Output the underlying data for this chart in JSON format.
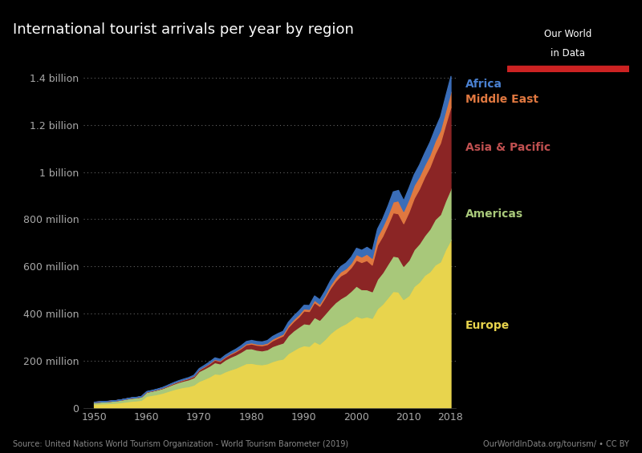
{
  "title": "International tourist arrivals per year by region",
  "background_color": "#000000",
  "text_color": "#ffffff",
  "source_text": "Source: United Nations World Tourism Organization - World Tourism Barometer (2019)",
  "owid_text": "OurWorldInData.org/tourism/ • CC BY",
  "years": [
    1950,
    1951,
    1952,
    1953,
    1954,
    1955,
    1956,
    1957,
    1958,
    1959,
    1960,
    1961,
    1962,
    1963,
    1964,
    1965,
    1966,
    1967,
    1968,
    1969,
    1970,
    1971,
    1972,
    1973,
    1974,
    1975,
    1976,
    1977,
    1978,
    1979,
    1980,
    1981,
    1982,
    1983,
    1984,
    1985,
    1986,
    1987,
    1988,
    1989,
    1990,
    1991,
    1992,
    1993,
    1994,
    1995,
    1996,
    1997,
    1998,
    1999,
    2000,
    2001,
    2002,
    2003,
    2004,
    2005,
    2006,
    2007,
    2008,
    2009,
    2010,
    2011,
    2012,
    2013,
    2014,
    2015,
    2016,
    2017,
    2018
  ],
  "europe": [
    16.8,
    17.5,
    18.5,
    19.5,
    21.0,
    23.0,
    26.0,
    29.0,
    30.5,
    33.0,
    50.4,
    54.0,
    58.0,
    63.0,
    70.0,
    77.0,
    83.0,
    88.0,
    91.0,
    97.5,
    113.0,
    122.0,
    132.0,
    145.0,
    143.0,
    153.9,
    162.0,
    169.0,
    179.0,
    189.0,
    190.0,
    186.0,
    184.0,
    188.0,
    197.0,
    204.0,
    208.0,
    231.0,
    244.0,
    257.0,
    265.0,
    262.0,
    282.0,
    271.0,
    291.0,
    315.0,
    333.0,
    347.0,
    358.0,
    374.0,
    390.0,
    382.0,
    387.0,
    381.0,
    421.0,
    441.0,
    468.0,
    495.0,
    493.0,
    461.0,
    477.0,
    516.0,
    534.0,
    563.0,
    578.0,
    607.0,
    620.0,
    672.0,
    713.0
  ],
  "americas": [
    7.5,
    8.0,
    8.5,
    9.0,
    9.5,
    10.5,
    11.5,
    12.5,
    13.0,
    14.0,
    16.7,
    17.5,
    18.5,
    19.5,
    21.0,
    23.0,
    25.0,
    26.5,
    29.0,
    31.5,
    42.0,
    44.0,
    46.0,
    48.0,
    45.0,
    50.0,
    53.5,
    56.0,
    58.0,
    62.0,
    62.0,
    60.0,
    59.0,
    59.5,
    64.0,
    65.0,
    68.0,
    76.0,
    83.0,
    86.0,
    93.0,
    93.0,
    103.0,
    102.0,
    107.0,
    109.0,
    114.0,
    117.0,
    119.0,
    122.0,
    128.0,
    121.0,
    115.5,
    113.0,
    125.0,
    133.0,
    142.0,
    150.0,
    148.0,
    141.0,
    150.0,
    156.0,
    163.0,
    168.0,
    181.0,
    193.0,
    201.0,
    207.0,
    217.0
  ],
  "asia_pacific": [
    0.2,
    0.25,
    0.3,
    0.35,
    0.4,
    0.5,
    0.6,
    0.7,
    0.8,
    0.9,
    1.1,
    1.3,
    1.6,
    2.0,
    2.5,
    3.0,
    3.5,
    4.0,
    4.8,
    5.5,
    6.0,
    8.0,
    9.5,
    11.0,
    10.0,
    11.0,
    12.0,
    13.5,
    15.0,
    17.5,
    20.0,
    21.0,
    21.5,
    22.0,
    24.5,
    27.0,
    30.0,
    35.0,
    39.0,
    43.0,
    54.0,
    55.0,
    63.0,
    59.0,
    69.0,
    82.0,
    90.0,
    97.0,
    96.0,
    100.0,
    110.0,
    115.0,
    124.0,
    113.0,
    145.0,
    155.0,
    167.0,
    184.0,
    184.0,
    181.0,
    204.0,
    218.0,
    233.0,
    249.0,
    263.0,
    279.0,
    303.0,
    323.0,
    347.0
  ],
  "middle_east": [
    0.0,
    0.0,
    0.0,
    0.0,
    0.0,
    0.0,
    0.1,
    0.1,
    0.2,
    0.2,
    0.5,
    0.6,
    0.7,
    0.8,
    1.0,
    1.2,
    1.3,
    1.4,
    1.5,
    1.6,
    1.8,
    2.0,
    2.3,
    2.7,
    2.8,
    3.0,
    3.4,
    3.8,
    4.2,
    4.6,
    5.0,
    5.0,
    5.5,
    6.0,
    7.0,
    7.5,
    7.5,
    8.5,
    9.0,
    9.5,
    9.5,
    9.0,
    10.0,
    9.5,
    11.0,
    13.5,
    15.0,
    17.0,
    18.0,
    18.5,
    24.0,
    23.5,
    27.0,
    29.0,
    36.0,
    40.0,
    41.0,
    46.0,
    55.0,
    52.0,
    54.0,
    55.0,
    52.0,
    50.0,
    51.0,
    53.0,
    54.0,
    58.0,
    64.0
  ],
  "africa": [
    0.5,
    0.5,
    0.6,
    0.6,
    0.7,
    0.8,
    0.9,
    1.0,
    1.1,
    1.2,
    1.5,
    1.6,
    1.8,
    2.0,
    2.3,
    2.6,
    2.8,
    3.0,
    3.2,
    3.5,
    4.8,
    5.5,
    6.2,
    6.6,
    6.6,
    7.0,
    7.5,
    8.0,
    8.8,
    9.5,
    10.4,
    10.8,
    11.0,
    11.3,
    11.7,
    12.5,
    12.5,
    14.0,
    15.0,
    16.0,
    15.0,
    16.5,
    18.0,
    18.5,
    19.0,
    20.0,
    22.0,
    23.0,
    25.0,
    26.5,
    26.5,
    28.5,
    29.0,
    31.5,
    33.0,
    35.0,
    40.0,
    43.0,
    44.0,
    45.0,
    49.0,
    46.0,
    50.0,
    52.0,
    55.0,
    53.0,
    58.0,
    63.0,
    67.0
  ],
  "colors": {
    "europe": "#e8d44d",
    "americas": "#a8c87a",
    "asia_pacific": "#8b2525",
    "middle_east": "#e07840",
    "africa": "#3a6db8"
  },
  "label_colors": {
    "europe": "#e8d44d",
    "americas": "#a8c87a",
    "asia_pacific": "#c05050",
    "middle_east": "#e07840",
    "africa": "#4a80d0"
  },
  "yticks": [
    0,
    200000000,
    400000000,
    600000000,
    800000000,
    1000000000,
    1200000000,
    1400000000
  ],
  "ytick_labels": [
    "0",
    "200 million",
    "400 million",
    "600 million",
    "800 million",
    "1 billion",
    "1.2 billion",
    "1.4 billion"
  ],
  "xticks": [
    1950,
    1960,
    1970,
    1980,
    1990,
    2000,
    2010,
    2018
  ],
  "ylim": [
    0,
    1500000000
  ],
  "xlim": [
    1948,
    2019
  ]
}
